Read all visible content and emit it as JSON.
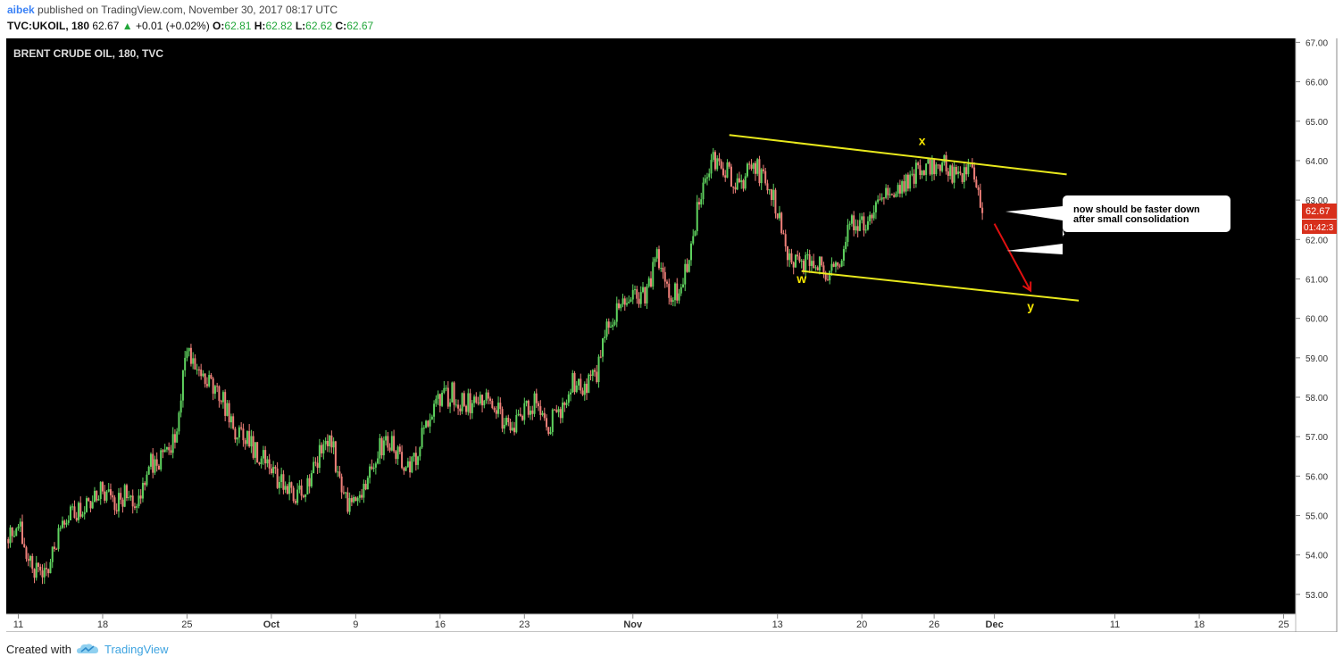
{
  "header": {
    "user": "aibek",
    "published_text": "published on TradingView.com, November 30, 2017 08:17 UTC",
    "symbol": "TVC:UKOIL, 180",
    "last": "62.67",
    "change_arrow": "▲",
    "change": "+0.01 (+0.02%)",
    "o_label": "O:",
    "o": "62.81",
    "h_label": "H:",
    "h": "62.82",
    "l_label": "L:",
    "l": "62.62",
    "c_label": "C:",
    "c": "62.67"
  },
  "footer": {
    "created_with": "Created with",
    "brand": "TradingView"
  },
  "colors": {
    "up": "#5fd35f",
    "down": "#f0807a",
    "trendline": "#e8e81c",
    "label": "#f5e500",
    "arrow": "#e01010",
    "price_tag": "#d8301c"
  },
  "chart_data": {
    "type": "candlestick",
    "title": "BRENT CRUDE OIL, 180, TVC",
    "y_ticks": [
      53,
      54,
      55,
      56,
      57,
      58,
      59,
      60,
      61,
      62,
      63,
      64,
      65,
      66,
      67
    ],
    "y_tick_labels": [
      "53.00",
      "54.00",
      "55.00",
      "56.00",
      "57.00",
      "58.00",
      "59.00",
      "60.00",
      "61.00",
      "62.00",
      "63.00",
      "64.00",
      "65.00",
      "66.00",
      "67.00"
    ],
    "ylim": [
      52.5,
      67.1
    ],
    "x_start": "2017-09-10",
    "x_end": "2017-12-26",
    "x_ticks": [
      {
        "date": "2017-09-11",
        "label": "11"
      },
      {
        "date": "2017-09-18",
        "label": "18"
      },
      {
        "date": "2017-09-25",
        "label": "25"
      },
      {
        "date": "2017-10-02",
        "label": "Oct"
      },
      {
        "date": "2017-10-09",
        "label": "9"
      },
      {
        "date": "2017-10-16",
        "label": "16"
      },
      {
        "date": "2017-10-23",
        "label": "23"
      },
      {
        "date": "2017-11-01",
        "label": "Nov"
      },
      {
        "date": "2017-11-13",
        "label": "13"
      },
      {
        "date": "2017-11-20",
        "label": "20"
      },
      {
        "date": "2017-11-26",
        "label": "26"
      },
      {
        "date": "2017-12-01",
        "label": "Dec"
      },
      {
        "date": "2017-12-11",
        "label": "11"
      },
      {
        "date": "2017-12-18",
        "label": "18"
      },
      {
        "date": "2017-12-25",
        "label": "25"
      }
    ],
    "closes_path": [
      [
        "2017-09-10",
        54.4
      ],
      [
        "2017-09-11",
        54.8
      ],
      [
        "2017-09-12",
        53.7
      ],
      [
        "2017-09-13",
        53.4
      ],
      [
        "2017-09-14",
        54.2
      ],
      [
        "2017-09-15",
        54.9
      ],
      [
        "2017-09-17",
        55.4
      ],
      [
        "2017-09-18",
        55.7
      ],
      [
        "2017-09-19",
        55.2
      ],
      [
        "2017-09-20",
        55.6
      ],
      [
        "2017-09-21",
        55.4
      ],
      [
        "2017-09-22",
        56.3
      ],
      [
        "2017-09-23",
        56.5
      ],
      [
        "2017-09-24",
        56.9
      ],
      [
        "2017-09-25",
        59.2
      ],
      [
        "2017-09-26",
        58.8
      ],
      [
        "2017-09-27",
        58.3
      ],
      [
        "2017-09-28",
        57.9
      ],
      [
        "2017-09-29",
        57.2
      ],
      [
        "2017-09-30",
        56.9
      ],
      [
        "2017-10-01",
        56.5
      ],
      [
        "2017-10-02",
        56.2
      ],
      [
        "2017-10-03",
        55.7
      ],
      [
        "2017-10-04",
        55.5
      ],
      [
        "2017-10-05",
        55.7
      ],
      [
        "2017-10-06",
        56.6
      ],
      [
        "2017-10-07",
        56.9
      ],
      [
        "2017-10-08",
        55.3
      ],
      [
        "2017-10-09",
        55.4
      ],
      [
        "2017-10-10",
        56.0
      ],
      [
        "2017-10-11",
        56.7
      ],
      [
        "2017-10-12",
        56.8
      ],
      [
        "2017-10-13",
        56.2
      ],
      [
        "2017-10-14",
        56.5
      ],
      [
        "2017-10-15",
        57.5
      ],
      [
        "2017-10-16",
        57.9
      ],
      [
        "2017-10-17",
        58.1
      ],
      [
        "2017-10-18",
        57.8
      ],
      [
        "2017-10-19",
        57.9
      ],
      [
        "2017-10-20",
        58.1
      ],
      [
        "2017-10-21",
        57.5
      ],
      [
        "2017-10-22",
        57.3
      ],
      [
        "2017-10-23",
        57.6
      ],
      [
        "2017-10-24",
        57.9
      ],
      [
        "2017-10-25",
        57.3
      ],
      [
        "2017-10-26",
        57.7
      ],
      [
        "2017-10-27",
        58.4
      ],
      [
        "2017-10-28",
        58.3
      ],
      [
        "2017-10-29",
        58.6
      ],
      [
        "2017-10-30",
        59.9
      ],
      [
        "2017-10-31",
        60.4
      ],
      [
        "2017-11-01",
        60.7
      ],
      [
        "2017-11-02",
        60.5
      ],
      [
        "2017-11-03",
        61.5
      ],
      [
        "2017-11-04",
        60.6
      ],
      [
        "2017-11-05",
        60.7
      ],
      [
        "2017-11-06",
        62.2
      ],
      [
        "2017-11-07",
        63.8
      ],
      [
        "2017-11-08",
        64.1
      ],
      [
        "2017-11-09",
        63.6
      ],
      [
        "2017-11-10",
        63.4
      ],
      [
        "2017-11-11",
        63.9
      ],
      [
        "2017-11-12",
        63.5
      ],
      [
        "2017-11-13",
        62.8
      ],
      [
        "2017-11-14",
        61.4
      ],
      [
        "2017-11-15",
        61.3
      ],
      [
        "2017-11-16",
        61.5
      ],
      [
        "2017-11-17",
        61.2
      ],
      [
        "2017-11-18",
        61.2
      ],
      [
        "2017-11-19",
        62.4
      ],
      [
        "2017-11-20",
        62.4
      ],
      [
        "2017-11-21",
        62.6
      ],
      [
        "2017-11-22",
        63.2
      ],
      [
        "2017-11-23",
        63.4
      ],
      [
        "2017-11-24",
        63.5
      ],
      [
        "2017-11-25",
        63.9
      ],
      [
        "2017-11-26",
        63.8
      ],
      [
        "2017-11-27",
        63.9
      ],
      [
        "2017-11-28",
        63.5
      ],
      [
        "2017-11-29",
        63.8
      ],
      [
        "2017-11-30",
        62.67
      ]
    ],
    "trendlines": [
      {
        "from": [
          "2017-11-09",
          64.65
        ],
        "to": [
          "2017-12-07",
          63.65
        ]
      },
      {
        "from": [
          "2017-11-15",
          61.2
        ],
        "to": [
          "2017-12-08",
          60.45
        ]
      }
    ],
    "wave_labels": [
      {
        "text": "x",
        "at": [
          "2017-11-25",
          64.4
        ]
      },
      {
        "text": "w",
        "at": [
          "2017-11-15",
          60.9
        ]
      },
      {
        "text": "y",
        "at": [
          "2017-12-04",
          60.2
        ]
      }
    ],
    "arrow": {
      "from": [
        "2017-12-01",
        62.4
      ],
      "to": [
        "2017-12-04",
        60.7
      ]
    },
    "callout": {
      "lines": [
        "now should be faster down",
        "after small consolidation"
      ]
    },
    "last_price": "62.67",
    "countdown": "01:42:3"
  }
}
